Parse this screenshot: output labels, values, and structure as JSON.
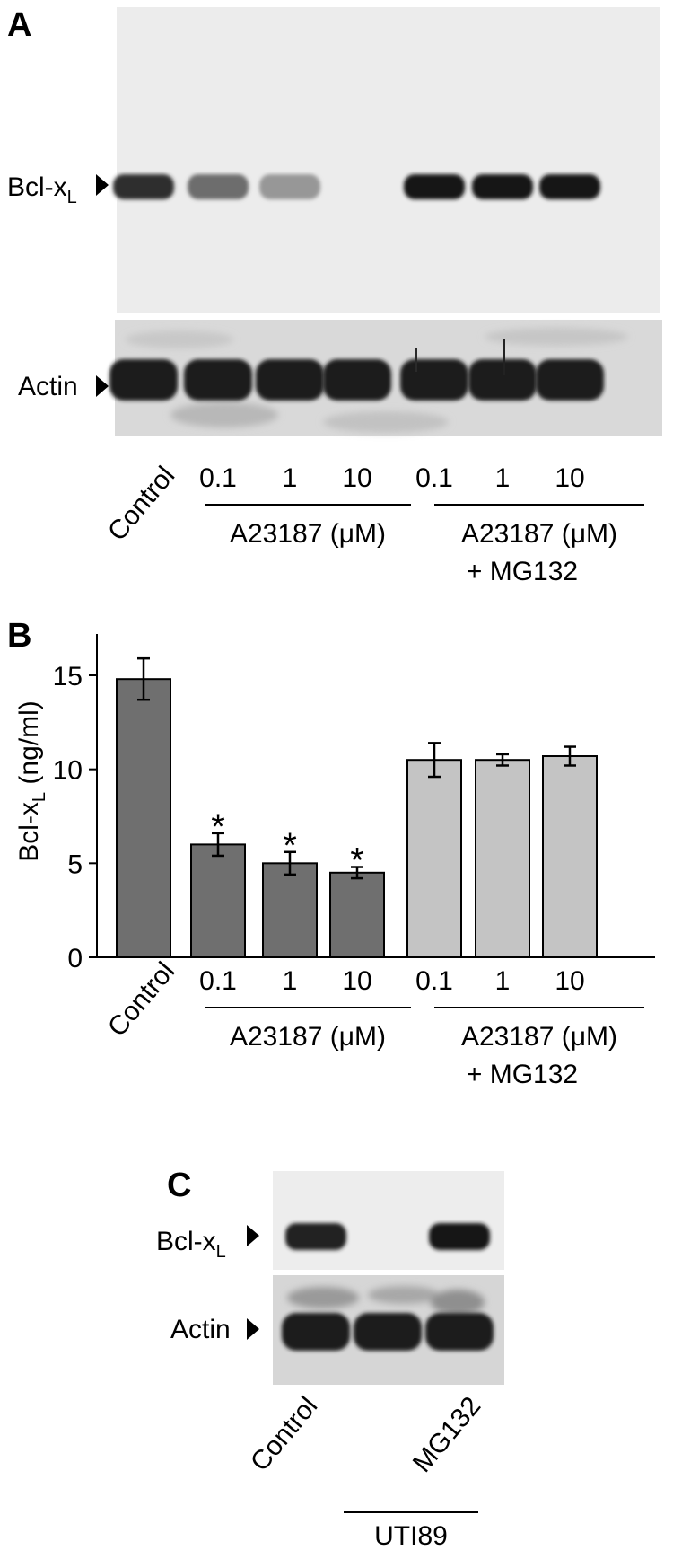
{
  "panel_a": {
    "letter": "A",
    "band_label_main": "Bcl-x",
    "band_label_sub": "L",
    "actin_label": "Actin",
    "control_label": "Control",
    "doses": [
      "0.1",
      "1",
      "10",
      "0.1",
      "1",
      "10"
    ],
    "group1_label": "A23187 (μM)",
    "group2_label_line1": "A23187 (μM)",
    "group2_label_line2": "+ MG132",
    "bcl_band_intensity": [
      0.9,
      0.6,
      0.4,
      0.0,
      1.0,
      1.0,
      1.0
    ]
  },
  "panel_b": {
    "letter": "B",
    "ylabel_main": "Bcl-x",
    "ylabel_sub": "L",
    "ylabel_unit": " (ng/ml)",
    "control_label": "Control",
    "doses": [
      "0.1",
      "1",
      "10",
      "0.1",
      "1",
      "10"
    ],
    "group1_label": "A23187 (μM)",
    "group2_label_line1": "A23187 (μM)",
    "group2_label_line2": "+ MG132",
    "colors": {
      "dark": "#6f6f6f",
      "light": "#c4c4c4"
    }
  },
  "panel_c": {
    "letter": "C",
    "band_label_main": "Bcl-x",
    "band_label_sub": "L",
    "actin_label": "Actin",
    "lane_labels": [
      "Control",
      "MG132"
    ],
    "group_label": "UTI89",
    "bcl_band_intensity": [
      0.95,
      0.0,
      1.0
    ]
  },
  "chart_data": {
    "type": "bar",
    "categories": [
      "Control",
      "0.1",
      "1",
      "10",
      "0.1",
      "1",
      "10"
    ],
    "values": [
      14.8,
      6.0,
      5.0,
      4.5,
      10.5,
      10.5,
      10.7
    ],
    "errors": [
      1.1,
      0.6,
      0.6,
      0.3,
      0.9,
      0.3,
      0.5
    ],
    "significant": [
      false,
      true,
      true,
      true,
      false,
      false,
      false
    ],
    "bar_color_group": [
      "dark",
      "dark",
      "dark",
      "dark",
      "light",
      "light",
      "light"
    ],
    "yticks": [
      0,
      5,
      10,
      15
    ],
    "ylim": [
      0,
      17.2
    ],
    "ylabel": "Bcl-xL (ng/ml)",
    "significance_marker": "*"
  }
}
